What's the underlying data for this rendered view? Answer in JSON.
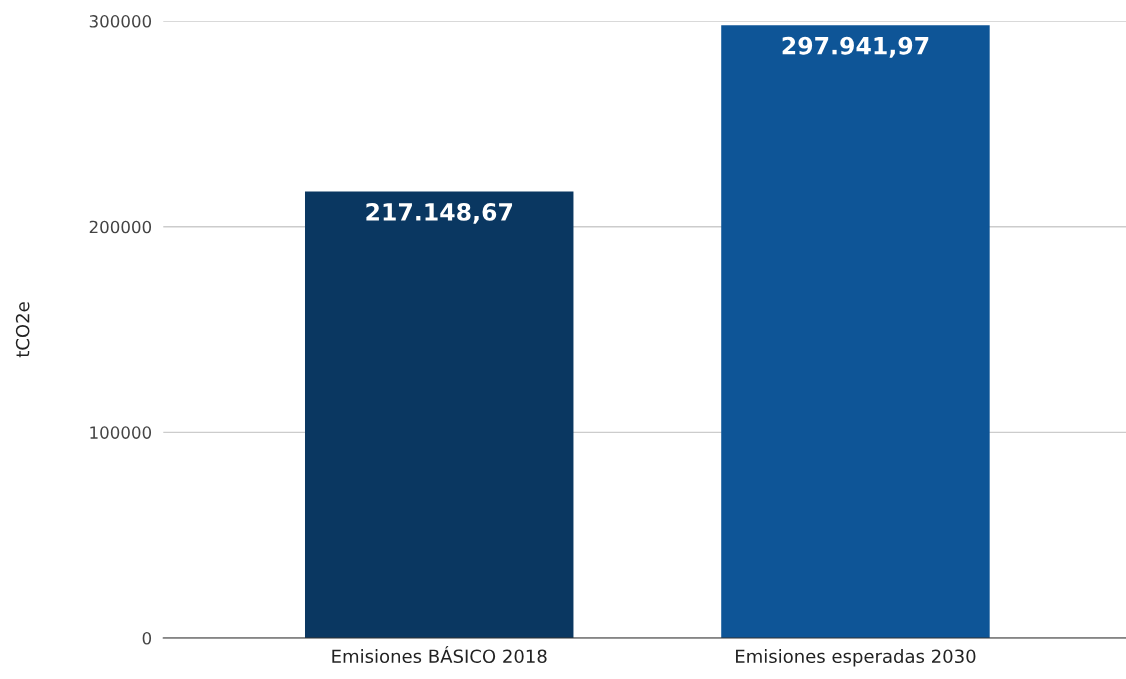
{
  "chart_data": {
    "type": "bar",
    "ylabel": "tCO2e",
    "categories": [
      "Emisiones BÁSICO 2018",
      "Emisiones esperadas 2030"
    ],
    "values": [
      217148.67,
      297941.97
    ],
    "colors": [
      "#0a3761",
      "#0e5597"
    ],
    "value_labels": [
      "217.148,67",
      "297.941,97"
    ],
    "ylim": [
      0,
      300000
    ],
    "yticks": [
      0,
      100000,
      200000,
      300000
    ],
    "grid": "y",
    "legend": false
  }
}
